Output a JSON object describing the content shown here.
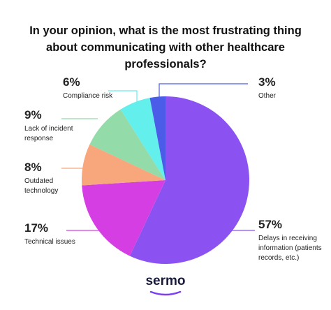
{
  "chart_data": {
    "type": "pie",
    "title": "In your opinion, what is the most frustrating thing about communicating with other healthcare professionals?",
    "categories": [
      "Delays in receiving information (patients records, etc.)",
      "Technical issues",
      "Outdated technology",
      "Lack of incident response",
      "Compliance risk",
      "Other"
    ],
    "values": [
      57,
      17,
      8,
      9,
      6,
      3
    ],
    "value_labels": [
      "57%",
      "17%",
      "8%",
      "9%",
      "6%",
      "3%"
    ],
    "colors": [
      "#8b52f1",
      "#d43ee2",
      "#f8a67c",
      "#93dba9",
      "#63efec",
      "#4b5ce9"
    ],
    "brand": "sermo"
  }
}
